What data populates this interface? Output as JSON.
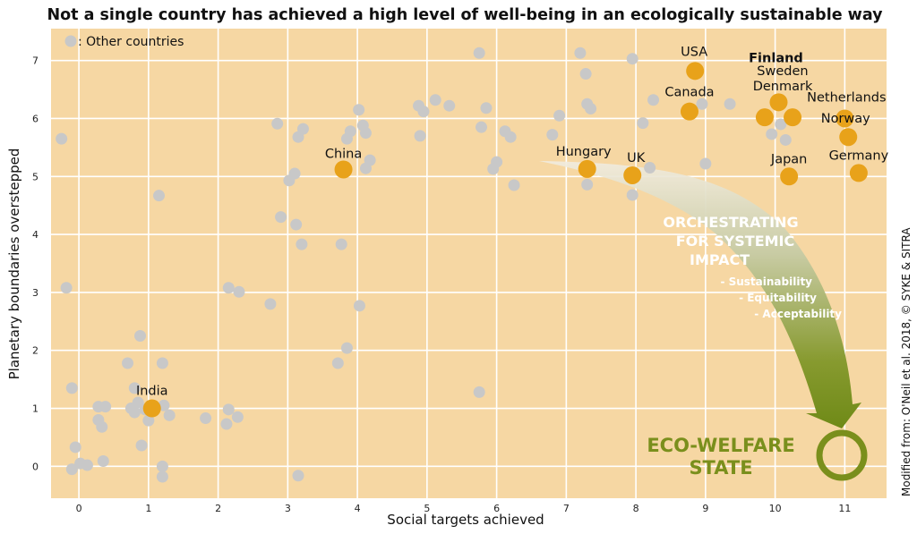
{
  "chart_data": {
    "type": "scatter",
    "title": "Not a single country has achieved a high level of well-being in an ecologically sustainable way",
    "xlabel": "Social targets achieved",
    "ylabel": "Planetary boundaries overstepped",
    "xlim": [
      -0.4,
      11.6
    ],
    "ylim": [
      -0.55,
      7.55
    ],
    "xticks": [
      "0",
      "1",
      "2",
      "3",
      "4",
      "5",
      "6",
      "7",
      "8",
      "9",
      "10",
      "11"
    ],
    "yticks": [
      "0",
      "1",
      "2",
      "3",
      "4",
      "5",
      "6",
      "7"
    ],
    "grid": true,
    "legend": {
      "label": ": Other countries",
      "position": "top-left"
    },
    "colors": {
      "background": "#f6d7a3",
      "other": "#c8c8c8",
      "highlight": "#e8a21a",
      "grid": "#ffffff",
      "eco": "#7a8f1c"
    },
    "highlighted": [
      {
        "label": "India",
        "x": 1.05,
        "y": 1.0,
        "bold": false
      },
      {
        "label": "China",
        "x": 3.8,
        "y": 5.12,
        "bold": false
      },
      {
        "label": "Hungary",
        "x": 7.3,
        "y": 5.13,
        "bold": false
      },
      {
        "label": "UK",
        "x": 7.95,
        "y": 5.02,
        "bold": false
      },
      {
        "label": "USA",
        "x": 8.85,
        "y": 6.82,
        "bold": false
      },
      {
        "label": "Canada",
        "x": 8.77,
        "y": 6.12,
        "bold": false
      },
      {
        "label": "Finland",
        "x": 10.05,
        "y": 6.28,
        "bold": true
      },
      {
        "label": "Sweden",
        "x": 9.85,
        "y": 6.02,
        "bold": false
      },
      {
        "label": "Denmark",
        "x": 10.25,
        "y": 6.02,
        "bold": false
      },
      {
        "label": "Netherlands",
        "x": 11.0,
        "y": 6.0,
        "bold": false
      },
      {
        "label": "Norway",
        "x": 11.05,
        "y": 5.68,
        "bold": false
      },
      {
        "label": "Japan",
        "x": 10.2,
        "y": 5.0,
        "bold": false
      },
      {
        "label": "Germany",
        "x": 11.2,
        "y": 5.06,
        "bold": false
      }
    ],
    "others": [
      [
        -0.25,
        5.65
      ],
      [
        -0.18,
        3.08
      ],
      [
        -0.1,
        1.35
      ],
      [
        -0.1,
        -0.05
      ],
      [
        -0.05,
        0.33
      ],
      [
        0.02,
        0.05
      ],
      [
        0.12,
        0.02
      ],
      [
        0.28,
        1.03
      ],
      [
        0.28,
        0.8
      ],
      [
        0.33,
        0.68
      ],
      [
        0.38,
        1.03
      ],
      [
        0.35,
        0.09
      ],
      [
        0.7,
        1.78
      ],
      [
        0.75,
        1.0
      ],
      [
        0.8,
        1.35
      ],
      [
        0.8,
        0.93
      ],
      [
        0.85,
        1.1
      ],
      [
        0.88,
        2.25
      ],
      [
        0.95,
        0.98
      ],
      [
        0.9,
        0.36
      ],
      [
        1.0,
        0.79
      ],
      [
        1.15,
        4.67
      ],
      [
        1.2,
        1.78
      ],
      [
        1.22,
        1.05
      ],
      [
        1.2,
        0.0
      ],
      [
        1.2,
        -0.18
      ],
      [
        1.3,
        0.88
      ],
      [
        1.82,
        0.83
      ],
      [
        2.12,
        0.73
      ],
      [
        2.15,
        0.98
      ],
      [
        2.15,
        3.08
      ],
      [
        2.28,
        0.85
      ],
      [
        2.3,
        3.01
      ],
      [
        2.75,
        2.8
      ],
      [
        2.85,
        5.91
      ],
      [
        2.9,
        4.3
      ],
      [
        3.02,
        4.93
      ],
      [
        3.1,
        5.05
      ],
      [
        3.12,
        4.17
      ],
      [
        3.15,
        5.68
      ],
      [
        3.15,
        -0.16
      ],
      [
        3.2,
        3.83
      ],
      [
        3.22,
        5.82
      ],
      [
        3.72,
        1.78
      ],
      [
        3.77,
        3.83
      ],
      [
        3.85,
        2.04
      ],
      [
        3.85,
        5.65
      ],
      [
        3.9,
        5.78
      ],
      [
        4.02,
        6.15
      ],
      [
        4.03,
        2.77
      ],
      [
        4.08,
        5.88
      ],
      [
        4.12,
        5.75
      ],
      [
        4.12,
        5.14
      ],
      [
        4.18,
        5.28
      ],
      [
        4.88,
        6.22
      ],
      [
        4.9,
        5.7
      ],
      [
        4.95,
        6.12
      ],
      [
        5.12,
        6.32
      ],
      [
        5.32,
        6.22
      ],
      [
        5.75,
        7.13
      ],
      [
        5.78,
        5.85
      ],
      [
        5.85,
        6.18
      ],
      [
        5.75,
        1.28
      ],
      [
        5.95,
        5.13
      ],
      [
        6.0,
        5.25
      ],
      [
        6.12,
        5.78
      ],
      [
        6.2,
        5.68
      ],
      [
        6.25,
        4.85
      ],
      [
        6.8,
        5.72
      ],
      [
        6.9,
        6.05
      ],
      [
        7.2,
        7.13
      ],
      [
        7.28,
        6.77
      ],
      [
        7.3,
        6.25
      ],
      [
        7.35,
        6.17
      ],
      [
        7.3,
        4.86
      ],
      [
        7.95,
        7.03
      ],
      [
        7.95,
        4.68
      ],
      [
        8.1,
        5.92
      ],
      [
        8.2,
        5.15
      ],
      [
        8.25,
        6.32
      ],
      [
        8.95,
        6.25
      ],
      [
        9.0,
        5.22
      ],
      [
        9.35,
        6.25
      ],
      [
        9.95,
        5.73
      ],
      [
        10.08,
        5.9
      ],
      [
        10.15,
        5.63
      ]
    ],
    "arrow_text": {
      "lines": [
        "ORCHESTRATING",
        "FOR SYSTEMIC",
        "IMPACT"
      ],
      "items": [
        "- Sustainability",
        "- Equitability",
        "- Acceptability"
      ]
    },
    "target": {
      "label_lines": [
        "ECO-WELFARE",
        "STATE"
      ],
      "x": 11.0,
      "y": 0.15
    },
    "credit": "Modified from: O'Neil et al. 2018, © SYKE & SITRA"
  }
}
